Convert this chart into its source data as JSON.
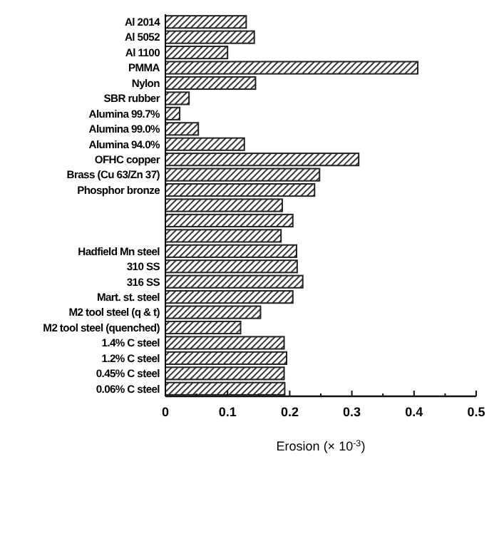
{
  "chart_data": {
    "type": "bar",
    "orientation": "horizontal",
    "xlabel": "Erosion (× 10$^{-3}$)",
    "categories": [
      "Al 2014",
      "Al 5052",
      "Al 1100",
      "PMMA",
      "Nylon",
      "SBR rubber",
      "Alumina 99.7%",
      "Alumina 99.0%",
      "Alumina 94.0%",
      "OFHC copper",
      "Brass (Cu 63/Zn 37)",
      "Phosphor bronze",
      null,
      null,
      null,
      "Hadfield Mn steel",
      "310 SS",
      "316 SS",
      "Mart. st. steel",
      "M2 tool steel (q & t)",
      "M2 tool steel (quenched)",
      "1.4% C steel",
      "1.2% C steel",
      "0.45% C steel",
      "0.06% C steel"
    ],
    "values": [
      0.13,
      0.143,
      0.1,
      0.406,
      0.145,
      0.038,
      0.023,
      0.053,
      0.127,
      0.311,
      0.248,
      0.24,
      0.188,
      0.205,
      0.186,
      0.211,
      0.212,
      0.221,
      0.205,
      0.153,
      0.121,
      0.191,
      0.195,
      0.191,
      0.192
    ],
    "color": "#222222",
    "xlim": [
      0,
      0.5
    ],
    "xticks": [
      0,
      {
        "value": 0.05,
        "label": null
      },
      0.1,
      {
        "value": 0.15,
        "label": null
      },
      0.2,
      {
        "value": 0.25,
        "label": null
      },
      0.3,
      {
        "value": 0.35,
        "label": null
      },
      0.4,
      {
        "value": 0.45,
        "label": null
      },
      0.5
    ],
    "grid": false
  }
}
